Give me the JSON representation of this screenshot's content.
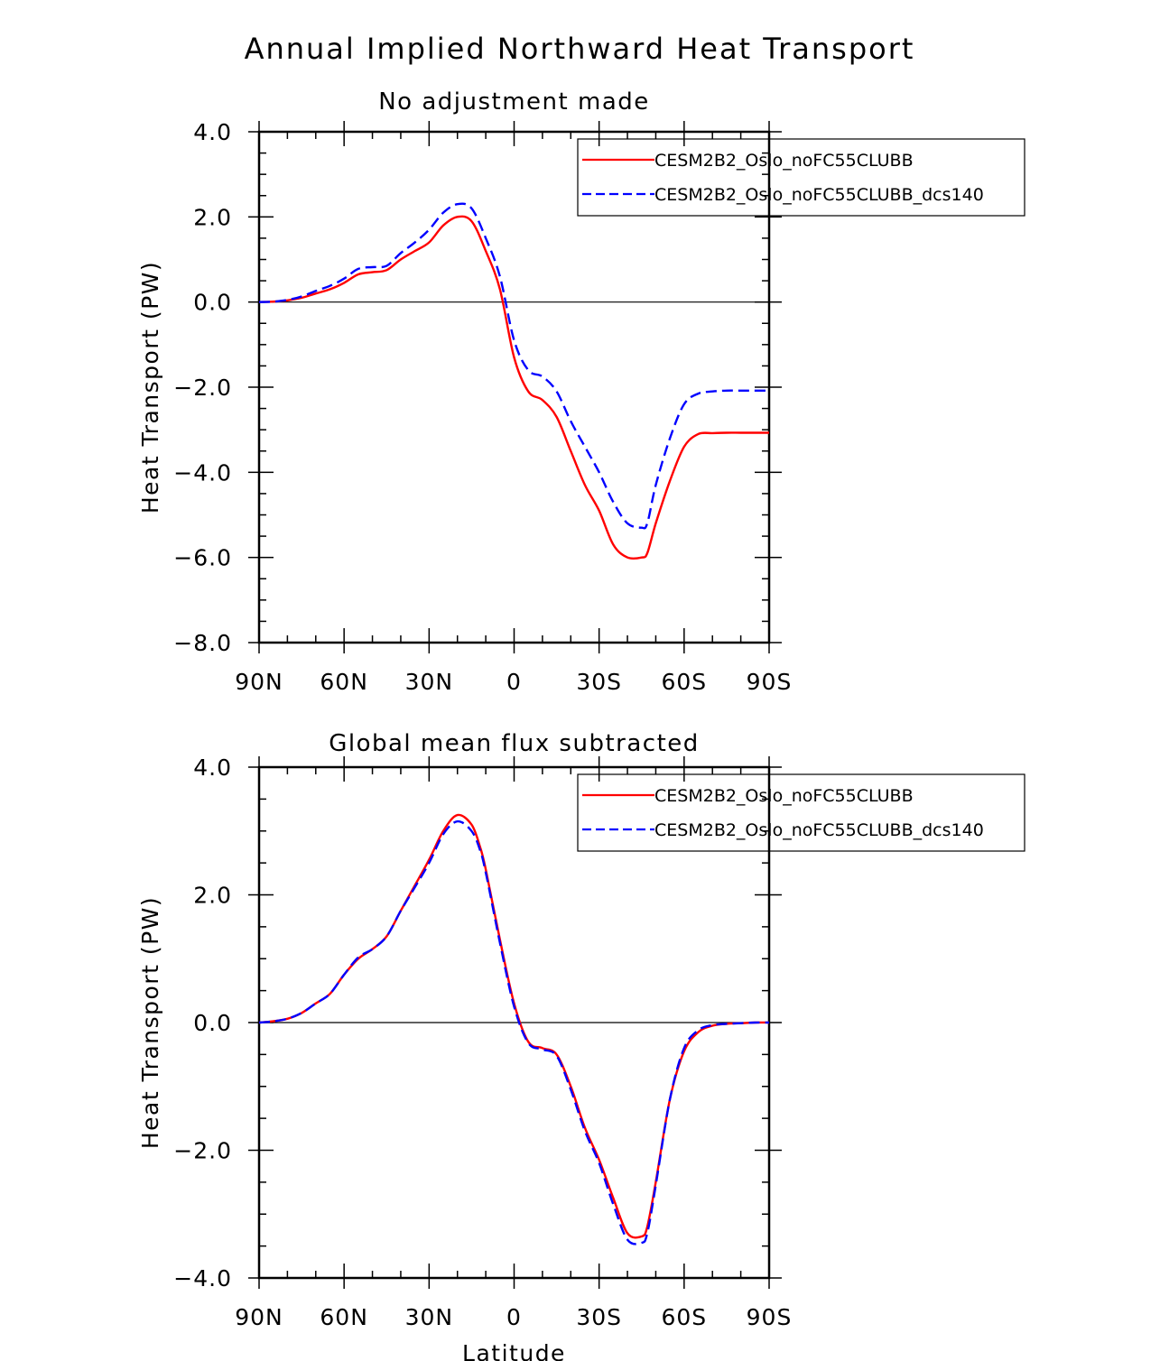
{
  "main_title": "Annual Implied Northward Heat Transport",
  "colors": {
    "series_1": "#ff0000",
    "series_2": "#0000ff",
    "axes": "#000000"
  },
  "chart_data": [
    {
      "type": "line",
      "title": "No adjustment made",
      "xlabel": "",
      "ylabel": "Heat Transport (PW)",
      "xlim": [
        90,
        -90
      ],
      "ylim": [
        -8,
        4
      ],
      "x_ticks": [
        90,
        60,
        30,
        0,
        -30,
        -60,
        -90
      ],
      "x_tick_labels": [
        "90N",
        "60N",
        "30N",
        "0",
        "30S",
        "60S",
        "90S"
      ],
      "y_ticks": [
        4,
        2,
        0,
        -2,
        -4,
        -6,
        -8
      ],
      "y_tick_labels": [
        "4.0",
        "2.0",
        "0.0",
        "−2.0",
        "−4.0",
        "−6.0",
        "−8.0"
      ],
      "legend_position": "top-right",
      "series": [
        {
          "name": "CESM2B2_Oslo_noFC55CLUBB",
          "style": "solid",
          "x": [
            90,
            85,
            80,
            75,
            70,
            65,
            60,
            55,
            50,
            45,
            40,
            35,
            30,
            25,
            20,
            15,
            10,
            5,
            0,
            -5,
            -10,
            -15,
            -20,
            -25,
            -30,
            -35,
            -40,
            -45,
            -47,
            -50,
            -55,
            -60,
            -65,
            -70,
            -75,
            -80,
            -85,
            -90
          ],
          "values": [
            0,
            0.01,
            0.04,
            0.1,
            0.2,
            0.3,
            0.45,
            0.65,
            0.7,
            0.75,
            1.0,
            1.2,
            1.4,
            1.8,
            2.0,
            1.9,
            1.2,
            0.3,
            -1.3,
            -2.1,
            -2.3,
            -2.7,
            -3.5,
            -4.3,
            -4.9,
            -5.7,
            -6.0,
            -6.0,
            -5.9,
            -5.2,
            -4.2,
            -3.4,
            -3.1,
            -3.08,
            -3.07,
            -3.07,
            -3.07,
            -3.07
          ]
        },
        {
          "name": "CESM2B2_Oslo_noFC55CLUBB_dcs140",
          "style": "dashed",
          "x": [
            90,
            85,
            80,
            75,
            70,
            65,
            60,
            55,
            50,
            45,
            40,
            35,
            30,
            25,
            20,
            15,
            10,
            5,
            0,
            -5,
            -10,
            -15,
            -20,
            -25,
            -30,
            -35,
            -40,
            -45,
            -47,
            -50,
            -55,
            -60,
            -65,
            -70,
            -75,
            -80,
            -85,
            -90
          ],
          "values": [
            0,
            0.01,
            0.05,
            0.13,
            0.26,
            0.38,
            0.55,
            0.78,
            0.82,
            0.85,
            1.15,
            1.4,
            1.7,
            2.1,
            2.3,
            2.2,
            1.5,
            0.6,
            -0.9,
            -1.6,
            -1.75,
            -2.1,
            -2.8,
            -3.4,
            -4.0,
            -4.7,
            -5.2,
            -5.3,
            -5.2,
            -4.3,
            -3.2,
            -2.4,
            -2.15,
            -2.1,
            -2.08,
            -2.08,
            -2.08,
            -2.08
          ]
        }
      ]
    },
    {
      "type": "line",
      "title": "Global mean flux subtracted",
      "xlabel": "Latitude",
      "ylabel": "Heat Transport (PW)",
      "xlim": [
        90,
        -90
      ],
      "ylim": [
        -4,
        4
      ],
      "x_ticks": [
        90,
        60,
        30,
        0,
        -30,
        -60,
        -90
      ],
      "x_tick_labels": [
        "90N",
        "60N",
        "30N",
        "0",
        "30S",
        "60S",
        "90S"
      ],
      "y_ticks": [
        4,
        2,
        0,
        -2,
        -4
      ],
      "y_tick_labels": [
        "4.0",
        "2.0",
        "0.0",
        "−2.0",
        "−4.0"
      ],
      "legend_position": "top-right",
      "series": [
        {
          "name": "CESM2B2_Oslo_noFC55CLUBB",
          "style": "solid",
          "x": [
            90,
            85,
            80,
            75,
            70,
            65,
            60,
            55,
            50,
            45,
            40,
            35,
            30,
            25,
            20,
            15,
            12,
            10,
            5,
            0,
            -5,
            -10,
            -15,
            -20,
            -25,
            -30,
            -35,
            -40,
            -45,
            -47,
            -50,
            -55,
            -60,
            -65,
            -70,
            -75,
            -80,
            -85,
            -90
          ],
          "values": [
            0,
            0.02,
            0.06,
            0.15,
            0.3,
            0.45,
            0.75,
            1.0,
            1.15,
            1.35,
            1.75,
            2.15,
            2.55,
            3.0,
            3.25,
            3.1,
            2.75,
            2.4,
            1.3,
            0.3,
            -0.3,
            -0.4,
            -0.5,
            -1.0,
            -1.65,
            -2.15,
            -2.75,
            -3.3,
            -3.35,
            -3.2,
            -2.5,
            -1.2,
            -0.45,
            -0.15,
            -0.05,
            -0.02,
            -0.01,
            0,
            0
          ]
        },
        {
          "name": "CESM2B2_Oslo_noFC55CLUBB_dcs140",
          "style": "dashed",
          "x": [
            90,
            85,
            80,
            75,
            70,
            65,
            60,
            55,
            50,
            45,
            40,
            35,
            30,
            25,
            20,
            15,
            12,
            10,
            5,
            0,
            -5,
            -10,
            -15,
            -20,
            -25,
            -30,
            -35,
            -40,
            -45,
            -47,
            -50,
            -55,
            -60,
            -65,
            -70,
            -75,
            -80,
            -85,
            -90
          ],
          "values": [
            0,
            0.02,
            0.06,
            0.15,
            0.3,
            0.45,
            0.75,
            1.02,
            1.15,
            1.35,
            1.75,
            2.12,
            2.5,
            2.95,
            3.15,
            3.0,
            2.7,
            2.35,
            1.25,
            0.25,
            -0.32,
            -0.42,
            -0.52,
            -1.05,
            -1.7,
            -2.2,
            -2.85,
            -3.4,
            -3.45,
            -3.3,
            -2.55,
            -1.2,
            -0.4,
            -0.12,
            -0.04,
            -0.02,
            -0.01,
            0,
            0
          ]
        }
      ]
    }
  ]
}
